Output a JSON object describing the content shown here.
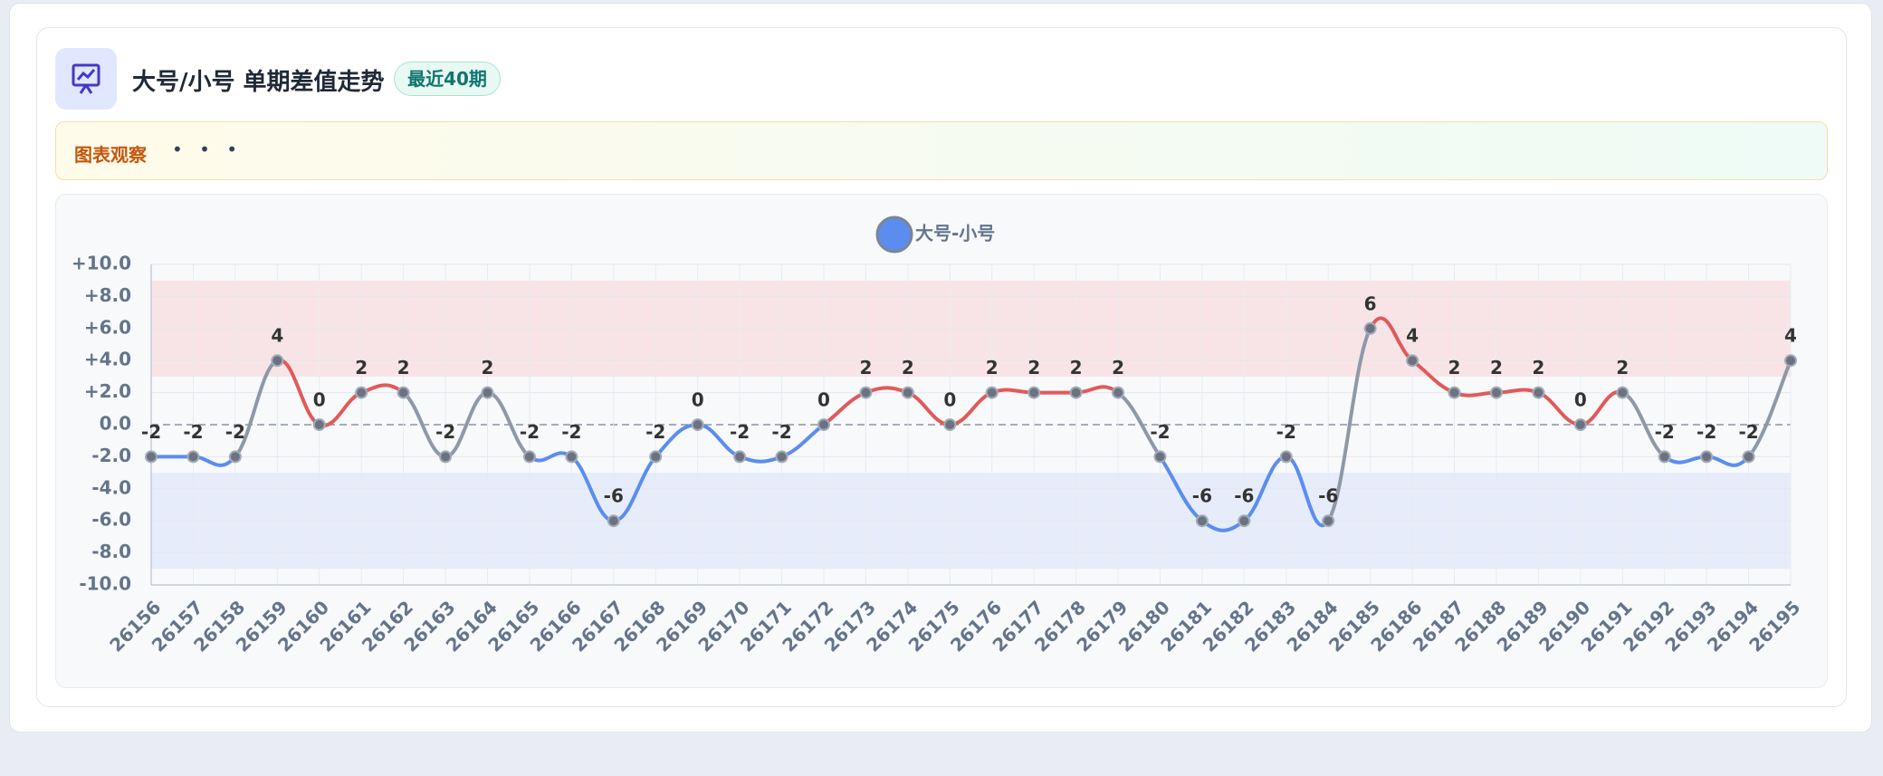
{
  "header": {
    "title": "大号/小号 单期差值走势",
    "badge": "最近40期"
  },
  "observation": {
    "label": "图表观察",
    "text": "• • •"
  },
  "chart_data": {
    "type": "line",
    "categories": [
      "26156",
      "26157",
      "26158",
      "26159",
      "26160",
      "26161",
      "26162",
      "26163",
      "26164",
      "26165",
      "26166",
      "26167",
      "26168",
      "26169",
      "26170",
      "26171",
      "26172",
      "26173",
      "26174",
      "26175",
      "26176",
      "26177",
      "26178",
      "26179",
      "26180",
      "26181",
      "26182",
      "26183",
      "26184",
      "26185",
      "26186",
      "26187",
      "26188",
      "26189",
      "26190",
      "26191",
      "26192",
      "26193",
      "26194",
      "26195"
    ],
    "series": [
      {
        "name": "大号-小号",
        "color": "#5b8def",
        "values": [
          -2,
          -2,
          -2,
          4,
          0,
          2,
          2,
          -2,
          2,
          -2,
          -2,
          -6,
          -2,
          0,
          -2,
          -2,
          0,
          2,
          2,
          0,
          2,
          2,
          2,
          2,
          -2,
          -6,
          -6,
          -2,
          -6,
          6,
          4,
          2,
          2,
          2,
          0,
          2,
          -2,
          -2,
          -2,
          4
        ]
      }
    ],
    "positive_color": "#e05a5a",
    "neutral_color": "#8e99a8",
    "bands": [
      {
        "from": 3,
        "to": 9,
        "color": "#f8e4e7"
      },
      {
        "from": -9,
        "to": -3,
        "color": "#e6ecf9"
      }
    ],
    "ylim": [
      -10,
      10
    ],
    "yticks": [
      {
        "value": 10,
        "label": "+10.0"
      },
      {
        "value": 8,
        "label": "+8.0"
      },
      {
        "value": 6,
        "label": "+6.0"
      },
      {
        "value": 4,
        "label": "+4.0"
      },
      {
        "value": 2,
        "label": "+2.0"
      },
      {
        "value": 0,
        "label": "0.0"
      },
      {
        "value": -2,
        "label": "-2.0"
      },
      {
        "value": -4,
        "label": "-4.0"
      },
      {
        "value": -6,
        "label": "-6.0"
      },
      {
        "value": -8,
        "label": "-8.0"
      },
      {
        "value": -10,
        "label": "-10.0"
      }
    ],
    "grid": true
  }
}
